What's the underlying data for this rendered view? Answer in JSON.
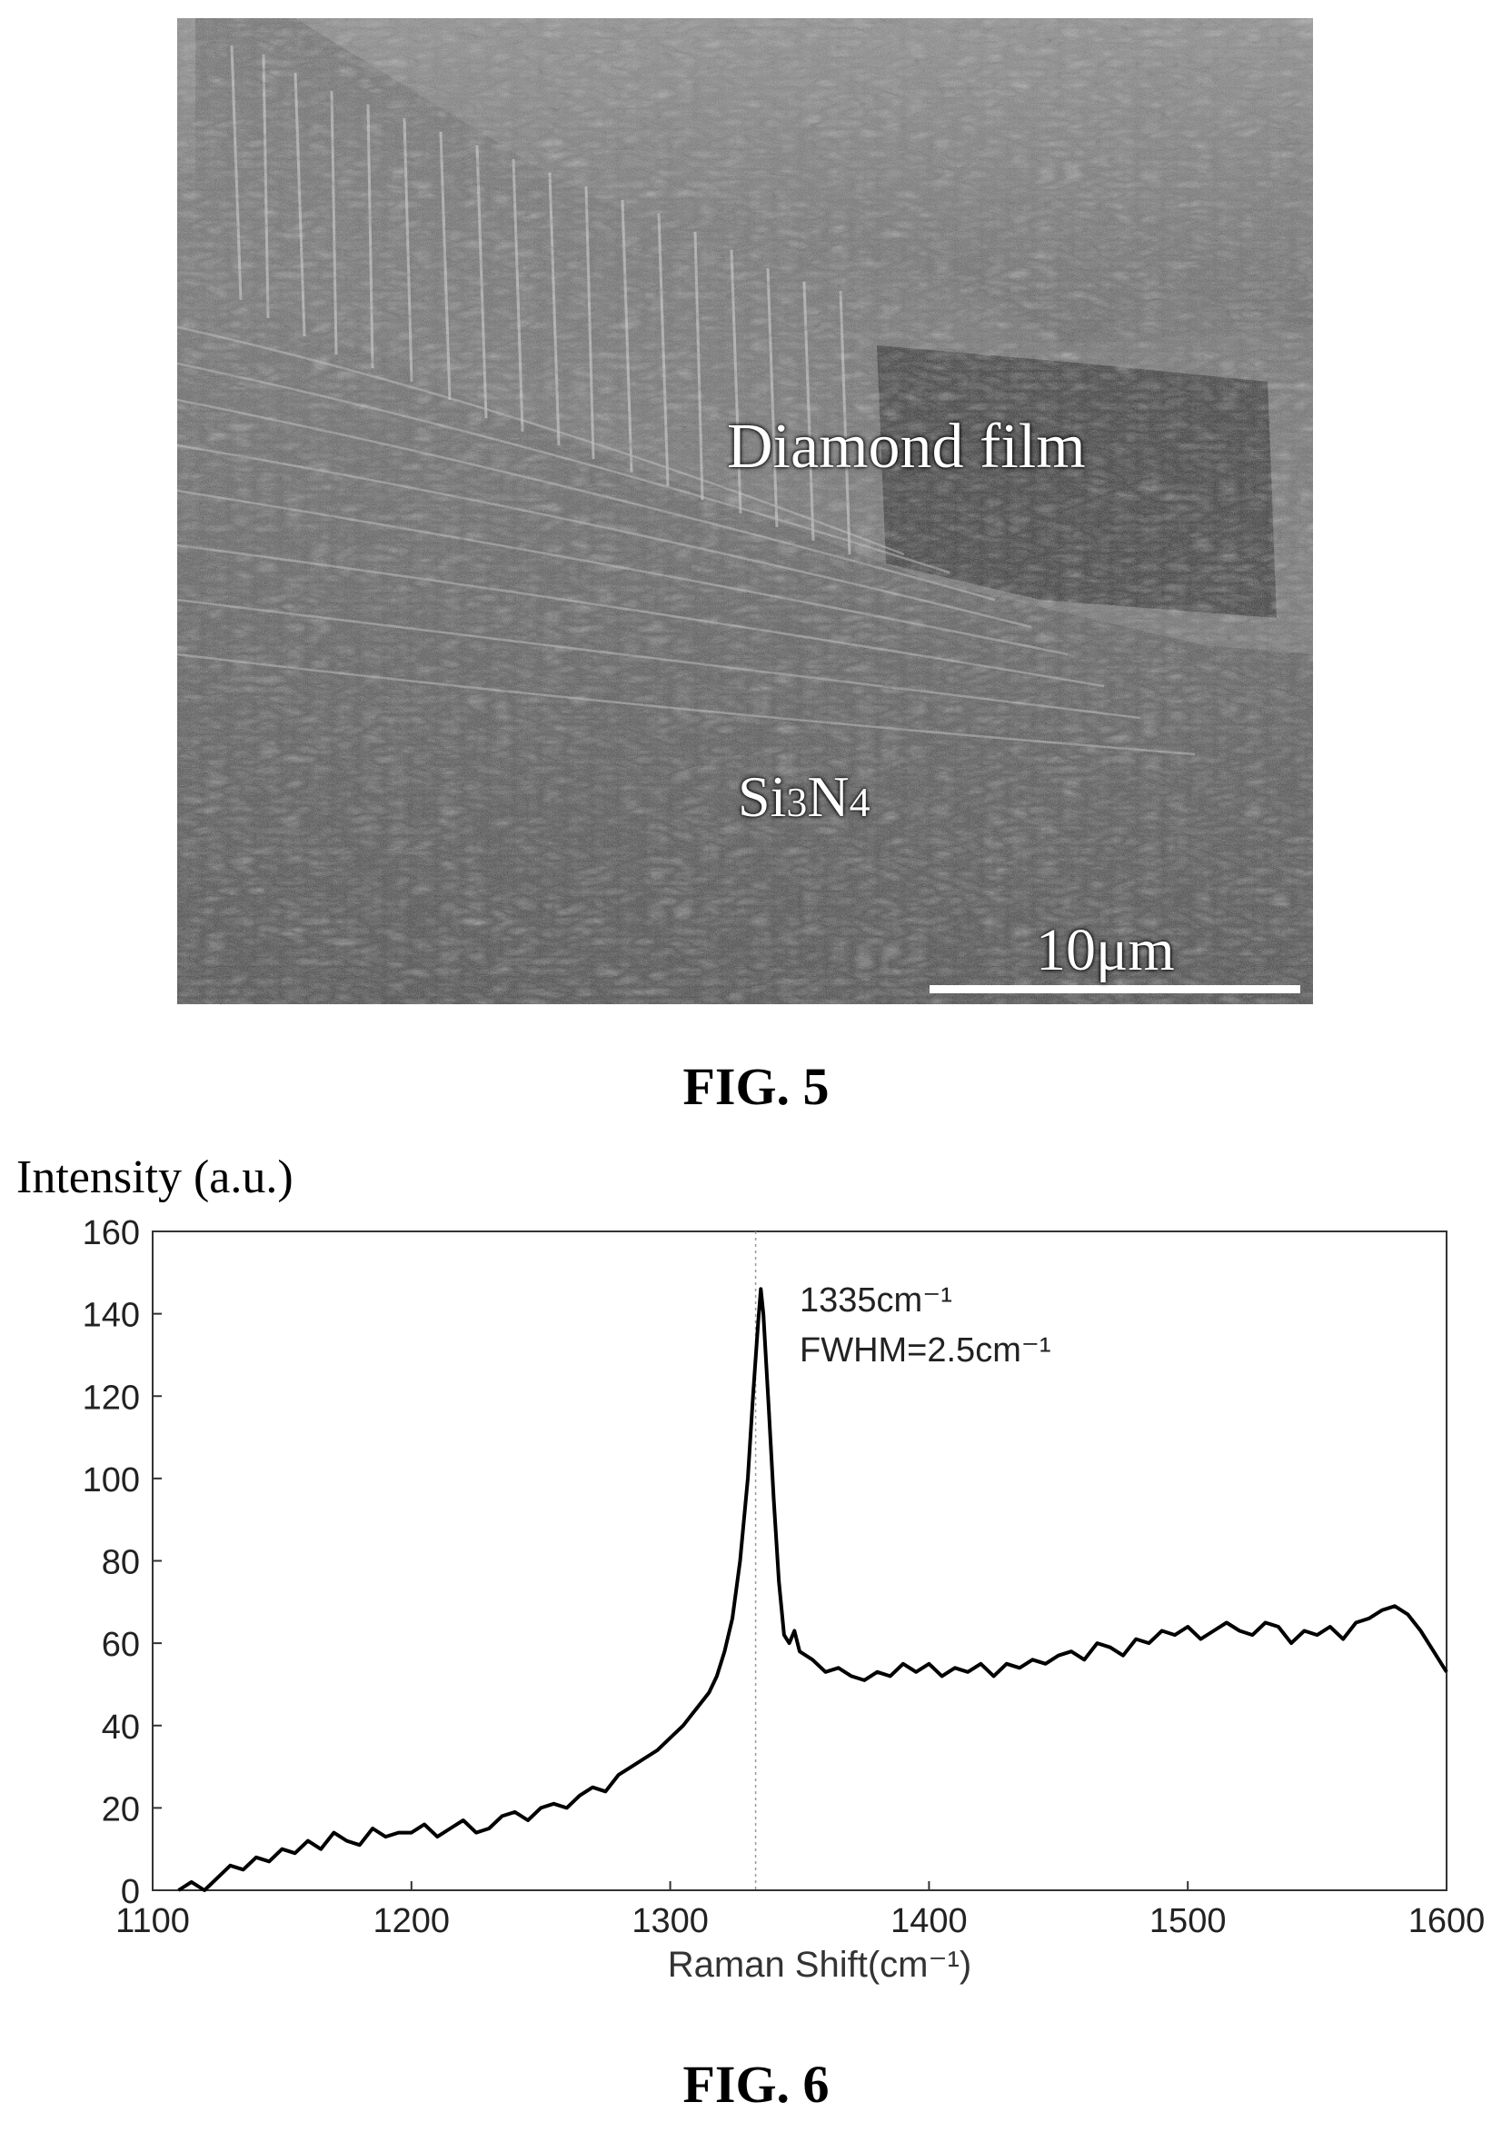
{
  "figures": [
    {
      "caption": "FIG. 5",
      "image": {
        "kind": "SEM micrograph",
        "labels": {
          "film": "Diamond film",
          "substrate_prefix": "Si",
          "substrate_sub1": "3",
          "substrate_mid": "N",
          "substrate_sub2": "4",
          "scale_bar": "10μm"
        }
      }
    },
    {
      "caption": "FIG. 6"
    }
  ],
  "chart_data": {
    "type": "line",
    "title": "",
    "ylabel": "Intensity (a.u.)",
    "xlabel": "Raman Shift(cm⁻¹)",
    "xlim": [
      1100,
      1600
    ],
    "ylim": [
      0,
      160
    ],
    "xticks": [
      1100,
      1200,
      1300,
      1400,
      1500,
      1600
    ],
    "yticks": [
      0,
      20,
      40,
      60,
      80,
      100,
      120,
      140,
      160
    ],
    "grid": false,
    "legend": "none",
    "line_color": "#000000",
    "annotations": {
      "peak_position": "1335cm⁻¹",
      "fwhm": "FWHM=2.5cm⁻¹",
      "peak_marker_x": 1333
    },
    "series": [
      {
        "x": [
          1110,
          1115,
          1120,
          1125,
          1130,
          1135,
          1140,
          1145,
          1150,
          1155,
          1160,
          1165,
          1170,
          1175,
          1180,
          1185,
          1190,
          1195,
          1200,
          1205,
          1210,
          1215,
          1220,
          1225,
          1230,
          1235,
          1240,
          1245,
          1250,
          1255,
          1260,
          1265,
          1270,
          1275,
          1280,
          1285,
          1290,
          1295,
          1300,
          1305,
          1310,
          1315,
          1318,
          1321,
          1324,
          1327,
          1330,
          1332,
          1334,
          1335,
          1336,
          1338,
          1340,
          1342,
          1344,
          1346,
          1348,
          1350,
          1355,
          1360,
          1365,
          1370,
          1375,
          1380,
          1385,
          1390,
          1395,
          1400,
          1405,
          1410,
          1415,
          1420,
          1425,
          1430,
          1435,
          1440,
          1445,
          1450,
          1455,
          1460,
          1465,
          1470,
          1475,
          1480,
          1485,
          1490,
          1495,
          1500,
          1505,
          1510,
          1515,
          1520,
          1525,
          1530,
          1535,
          1540,
          1545,
          1550,
          1555,
          1560,
          1565,
          1570,
          1575,
          1580,
          1585,
          1590,
          1595,
          1600
        ],
        "y": [
          0,
          2,
          0,
          3,
          6,
          5,
          8,
          7,
          10,
          9,
          12,
          10,
          14,
          12,
          11,
          15,
          13,
          14,
          14,
          16,
          13,
          15,
          17,
          14,
          15,
          18,
          19,
          17,
          20,
          21,
          20,
          23,
          25,
          24,
          28,
          30,
          32,
          34,
          37,
          40,
          44,
          48,
          52,
          58,
          66,
          80,
          100,
          120,
          138,
          146,
          140,
          118,
          95,
          75,
          62,
          60,
          63,
          58,
          56,
          53,
          54,
          52,
          51,
          53,
          52,
          55,
          53,
          55,
          52,
          54,
          53,
          55,
          52,
          55,
          54,
          56,
          55,
          57,
          58,
          56,
          60,
          59,
          57,
          61,
          60,
          63,
          62,
          64,
          61,
          63,
          65,
          63,
          62,
          65,
          64,
          60,
          63,
          62,
          64,
          61,
          65,
          66,
          68,
          69,
          67,
          63,
          58,
          53
        ]
      }
    ]
  }
}
